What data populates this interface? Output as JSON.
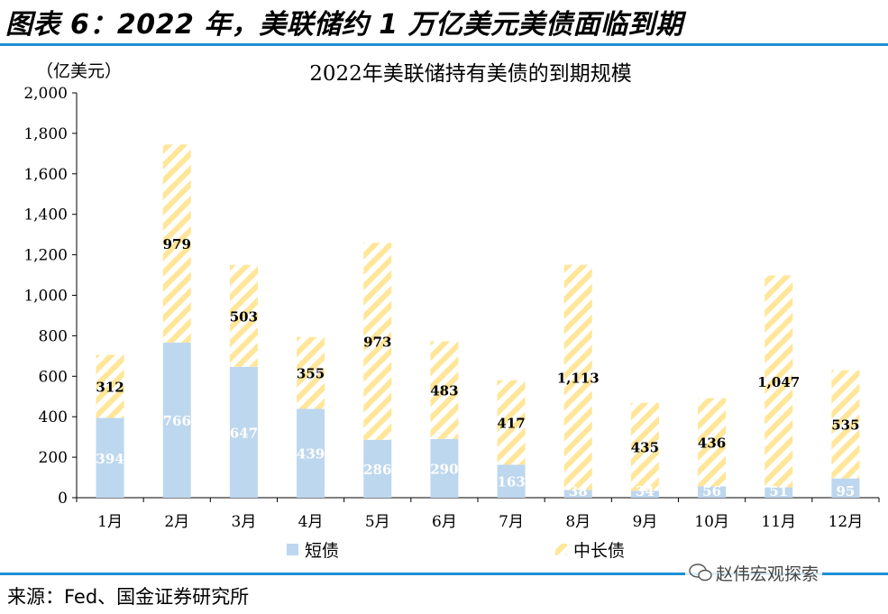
{
  "header": {
    "title": "图表 6：2022 年，美联储约 1 万亿美元美债面临到期"
  },
  "footer": {
    "source": "来源：Fed、国金证券研究所",
    "watermark": "赵伟宏观探索",
    "watermark_icon": "wechat-icon"
  },
  "colors": {
    "short": "#bdd7ee",
    "long_stripe": "#ffe699",
    "accent": "#1f8fd6"
  },
  "chart_data": {
    "type": "bar",
    "stacked": true,
    "title": "2022年美联储持有美债的到期规模",
    "unit_label": "（亿美元）",
    "categories": [
      "1月",
      "2月",
      "3月",
      "4月",
      "5月",
      "6月",
      "7月",
      "8月",
      "9月",
      "10月",
      "11月",
      "12月"
    ],
    "series": [
      {
        "name": "短债",
        "values": [
          394,
          766,
          647,
          439,
          286,
          290,
          163,
          38,
          34,
          56,
          51,
          95
        ],
        "labels": [
          "394",
          "766",
          "647",
          "439",
          "286",
          "290",
          "163",
          "38",
          "34",
          "56",
          "51",
          "95"
        ]
      },
      {
        "name": "中长债",
        "values": [
          312,
          979,
          503,
          355,
          973,
          483,
          417,
          1113,
          435,
          436,
          1047,
          535
        ],
        "labels": [
          "312",
          "979",
          "503",
          "355",
          "973",
          "483",
          "417",
          "1,113",
          "435",
          "436",
          "1,047",
          "535"
        ]
      }
    ],
    "ylim": [
      0,
      2000
    ],
    "yticks": [
      0,
      200,
      400,
      600,
      800,
      1000,
      1200,
      1400,
      1600,
      1800,
      2000
    ],
    "ytick_labels": [
      "0",
      "200",
      "400",
      "600",
      "800",
      "1,000",
      "1,200",
      "1,400",
      "1,600",
      "1,800",
      "2,000"
    ],
    "grid": false,
    "legend_position": "bottom"
  }
}
